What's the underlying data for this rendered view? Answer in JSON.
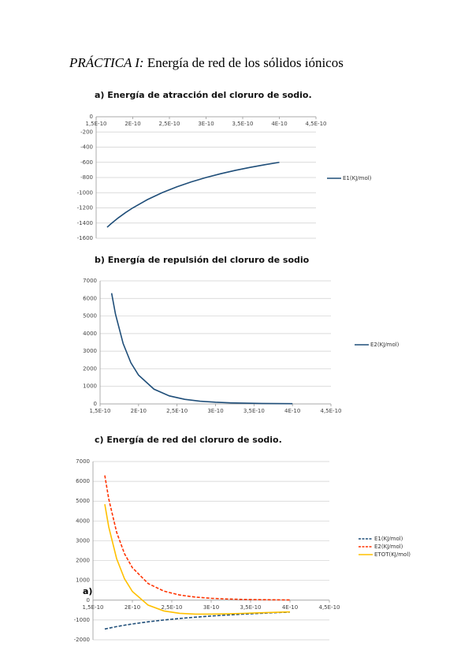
{
  "header": {
    "prefix": "PRÁCTICA I:",
    "title": "Energía de red de los sólidos iónicos"
  },
  "chart_data": [
    {
      "type": "line",
      "title": "a)  Energía de atracción del cloruro de sodio.",
      "x": [
        1.65e-10,
        1.7e-10,
        1.8e-10,
        1.9e-10,
        2e-10,
        2.2e-10,
        2.4e-10,
        2.6e-10,
        2.8e-10,
        3e-10,
        3.2e-10,
        3.4e-10,
        3.6e-10,
        3.8e-10,
        4e-10
      ],
      "series": [
        {
          "name": "E1(KJ/mol)",
          "color": "#1f4e79",
          "style": "solid",
          "values": [
            -1455,
            -1412,
            -1333,
            -1263,
            -1200,
            -1091,
            -1000,
            -923,
            -857,
            -800,
            -750,
            -706,
            -667,
            -632,
            -600
          ]
        }
      ],
      "xlim": [
        1.5e-10,
        4.5e-10
      ],
      "xticks": [
        {
          "value": 1.5e-10,
          "label": "1,5E-10"
        },
        {
          "value": 2e-10,
          "label": "2E-10"
        },
        {
          "value": 2.5e-10,
          "label": "2,5E-10"
        },
        {
          "value": 3e-10,
          "label": "3E-10"
        },
        {
          "value": 3.5e-10,
          "label": "3,5E-10"
        },
        {
          "value": 4e-10,
          "label": "4E-10"
        },
        {
          "value": 4.5e-10,
          "label": "4,5E-10"
        }
      ],
      "ylim": [
        -1600,
        0
      ],
      "yticks": [
        0,
        -200,
        -400,
        -600,
        -800,
        -1000,
        -1200,
        -1400,
        -1600
      ],
      "grid": true,
      "legend_position": "right"
    },
    {
      "type": "line",
      "title": "b)  Energía de repulsión del cloruro de sodio",
      "x": [
        1.65e-10,
        1.7e-10,
        1.8e-10,
        1.9e-10,
        2e-10,
        2.2e-10,
        2.4e-10,
        2.6e-10,
        2.8e-10,
        3e-10,
        3.2e-10,
        3.4e-10,
        3.6e-10,
        3.8e-10,
        4e-10
      ],
      "series": [
        {
          "name": "E2(KJ/mol)",
          "color": "#1f4e79",
          "style": "solid",
          "values": [
            6300,
            5110,
            3430,
            2345,
            1638,
            841,
            457,
            261,
            155,
            96,
            61,
            40,
            27,
            18,
            13
          ]
        }
      ],
      "xlim": [
        1.5e-10,
        4.5e-10
      ],
      "xticks": [
        {
          "value": 1.5e-10,
          "label": "1,5E-10"
        },
        {
          "value": 2e-10,
          "label": "2E-10"
        },
        {
          "value": 2.5e-10,
          "label": "2,5E-10"
        },
        {
          "value": 3e-10,
          "label": "3E-10"
        },
        {
          "value": 3.5e-10,
          "label": "3,5E-10"
        },
        {
          "value": 4e-10,
          "label": "4E-10"
        },
        {
          "value": 4.5e-10,
          "label": "4,5E-10"
        }
      ],
      "ylim": [
        0,
        7000
      ],
      "yticks": [
        0,
        1000,
        2000,
        3000,
        4000,
        5000,
        6000,
        7000
      ],
      "grid": true,
      "legend_position": "right"
    },
    {
      "type": "line",
      "title": "c)  Energía de red del cloruro de sodio.",
      "annotation": "a)",
      "x": [
        1.65e-10,
        1.7e-10,
        1.8e-10,
        1.9e-10,
        2e-10,
        2.2e-10,
        2.4e-10,
        2.6e-10,
        2.8e-10,
        3e-10,
        3.2e-10,
        3.4e-10,
        3.6e-10,
        3.8e-10,
        4e-10
      ],
      "series": [
        {
          "name": "E1(KJ/mol)",
          "color": "#1f4e79",
          "style": "dashed",
          "values": [
            -1455,
            -1412,
            -1333,
            -1263,
            -1200,
            -1091,
            -1000,
            -923,
            -857,
            -800,
            -750,
            -706,
            -667,
            -632,
            -600
          ]
        },
        {
          "name": "E2(KJ/mol)",
          "color": "#ff3300",
          "style": "dashed",
          "values": [
            6300,
            5110,
            3430,
            2345,
            1638,
            841,
            457,
            261,
            155,
            96,
            61,
            40,
            27,
            18,
            13
          ]
        },
        {
          "name": "ETOT(KJ/mol)",
          "color": "#ffc000",
          "style": "solid",
          "values": [
            4845,
            3698,
            2097,
            1082,
            438,
            -250,
            -543,
            -662,
            -702,
            -704,
            -689,
            -666,
            -640,
            -614,
            -587
          ]
        }
      ],
      "xlim": [
        1.5e-10,
        4.5e-10
      ],
      "xticks": [
        {
          "value": 1.5e-10,
          "label": "1,5E-10"
        },
        {
          "value": 2e-10,
          "label": "2E-10"
        },
        {
          "value": 2.5e-10,
          "label": "2,5E-10"
        },
        {
          "value": 3e-10,
          "label": "3E-10"
        },
        {
          "value": 3.5e-10,
          "label": "3,5E-10"
        },
        {
          "value": 4e-10,
          "label": "4E-10"
        },
        {
          "value": 4.5e-10,
          "label": "4,5E-10"
        }
      ],
      "ylim": [
        -2000,
        7000
      ],
      "yticks": [
        -2000,
        -1000,
        0,
        1000,
        2000,
        3000,
        4000,
        5000,
        6000,
        7000
      ],
      "grid": true,
      "legend_position": "right"
    }
  ]
}
